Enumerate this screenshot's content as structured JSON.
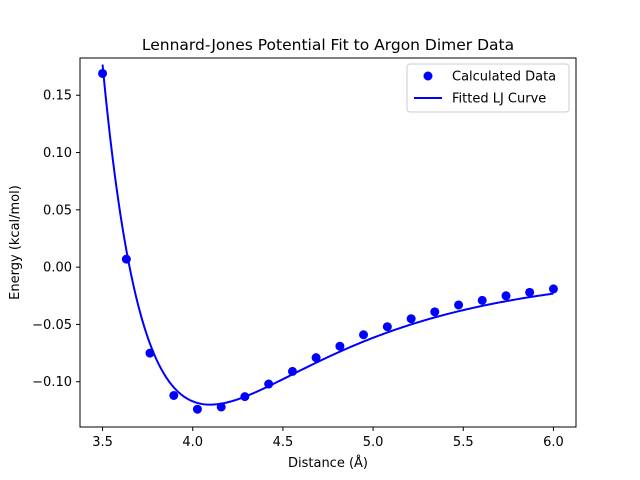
{
  "chart_data": {
    "type": "scatter",
    "title": "Lennard-Jones Potential Fit to Argon Dimer Data",
    "xlabel": "Distance (Å)",
    "ylabel": "Energy (kcal/mol)",
    "xlim": [
      3.375,
      6.125
    ],
    "ylim": [
      -0.1395,
      0.1825
    ],
    "xticks": [
      3.5,
      4.0,
      4.5,
      5.0,
      5.5,
      6.0
    ],
    "xtick_labels": [
      "3.5",
      "4.0",
      "4.5",
      "5.0",
      "5.5",
      "6.0"
    ],
    "yticks": [
      -0.1,
      -0.05,
      0.0,
      0.05,
      0.1,
      0.15
    ],
    "ytick_labels": [
      "−0.10",
      "−0.05",
      "0.00",
      "0.05",
      "0.10",
      "0.15"
    ],
    "grid": false,
    "legend": {
      "position": "top-right",
      "entries": [
        "Calculated Data",
        "Fitted LJ Curve"
      ]
    },
    "series": [
      {
        "name": "Calculated Data",
        "kind": "scatter",
        "color": "#0000ff",
        "x": [
          3.5,
          3.632,
          3.763,
          3.895,
          4.026,
          4.158,
          4.289,
          4.421,
          4.553,
          4.684,
          4.816,
          4.947,
          5.079,
          5.211,
          5.342,
          5.474,
          5.605,
          5.737,
          5.868,
          6.0
        ],
        "y": [
          0.169,
          0.007,
          -0.075,
          -0.112,
          -0.124,
          -0.122,
          -0.113,
          -0.102,
          -0.091,
          -0.079,
          -0.069,
          -0.059,
          -0.052,
          -0.045,
          -0.039,
          -0.033,
          -0.029,
          -0.025,
          -0.022,
          -0.019
        ]
      },
      {
        "name": "Fitted LJ Curve",
        "kind": "line",
        "color": "#0000ff",
        "epsilon": 0.12,
        "sigma": 3.65,
        "x_range": [
          3.5,
          6.0
        ]
      }
    ]
  }
}
